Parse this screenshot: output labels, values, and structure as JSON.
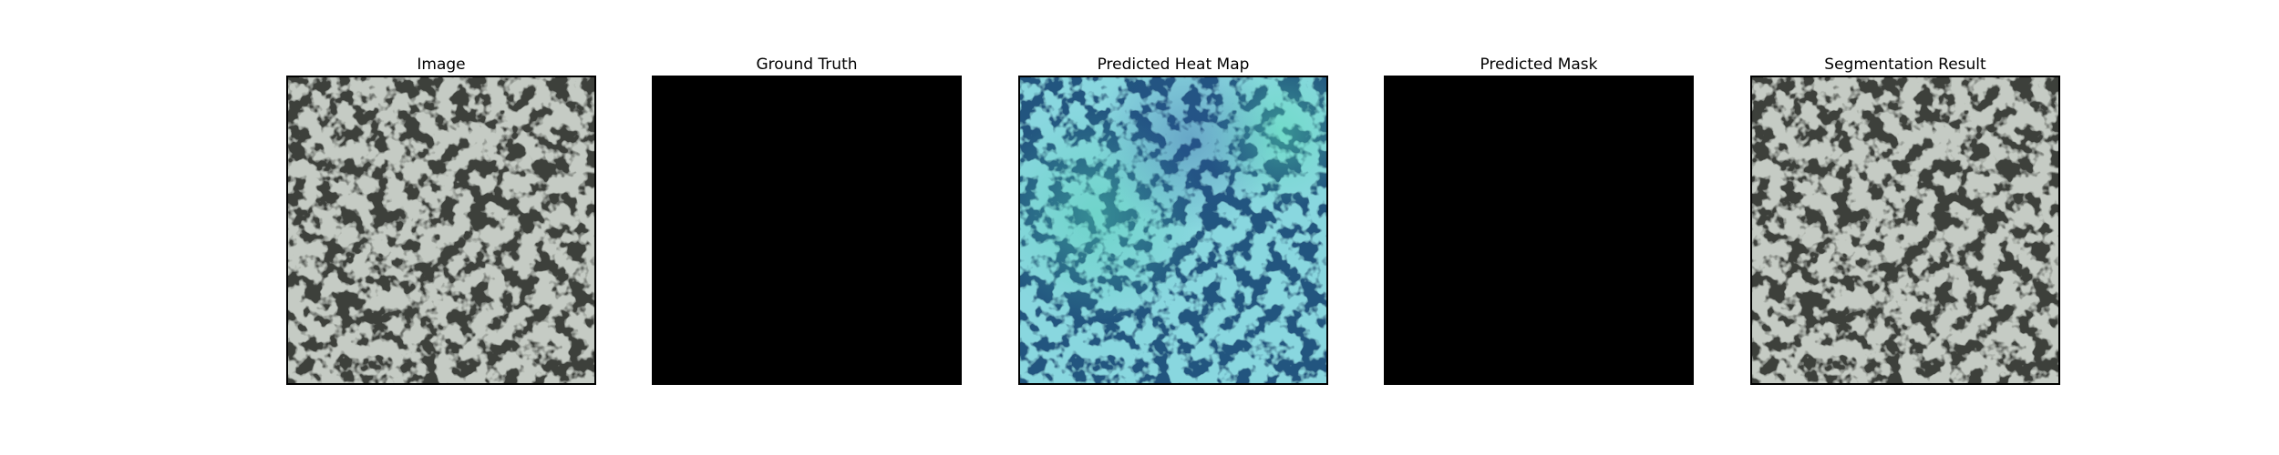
{
  "figure": {
    "panels": [
      {
        "title": "Image",
        "kind": "texture"
      },
      {
        "title": "Ground Truth",
        "kind": "mask"
      },
      {
        "title": "Predicted Heat Map",
        "kind": "heatmap"
      },
      {
        "title": "Predicted Mask",
        "kind": "mask"
      },
      {
        "title": "Segmentation Result",
        "kind": "texture"
      }
    ]
  },
  "colors": {
    "texture_light": "#8f9a8e",
    "texture_dark": "#3c3f3a",
    "heat_base": "#3f8fb0",
    "heat_dark": "#21547f",
    "heat_hot": "#4fd0b0",
    "mask": "#000000",
    "border": "#000000"
  }
}
